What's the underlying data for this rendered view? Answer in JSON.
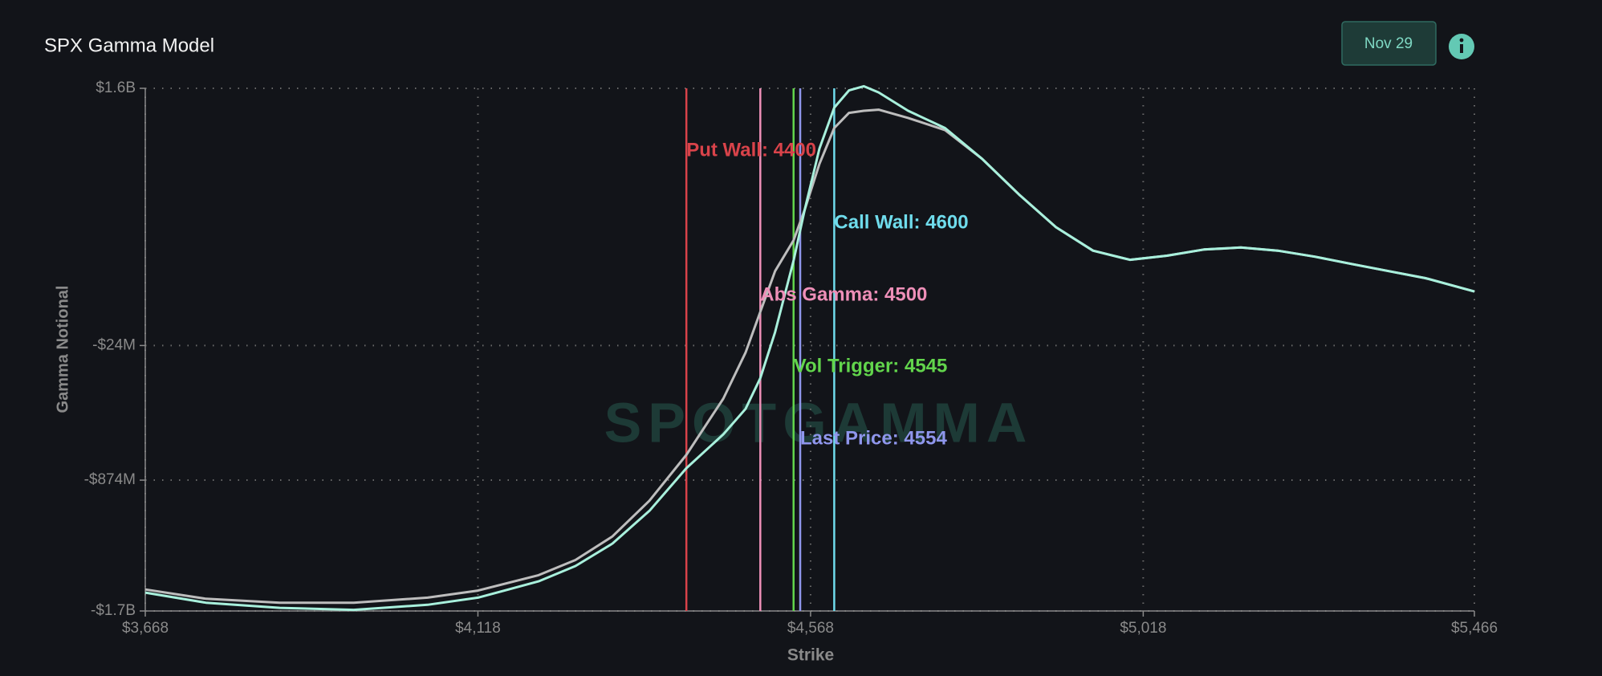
{
  "header": {
    "date_button": "Nov 29"
  },
  "chart_data": {
    "type": "line",
    "title": "SPX Gamma Model",
    "watermark": "SPOTGAMMA",
    "x_label": "Strike",
    "y_label": "Gamma Notional",
    "xlim": [
      3668,
      5466
    ],
    "xticks": [
      {
        "value": 3668,
        "label": "$3,668"
      },
      {
        "value": 4118,
        "label": "$4,118"
      },
      {
        "value": 4568,
        "label": "$4,568"
      },
      {
        "value": 5018,
        "label": "$5,018"
      },
      {
        "value": 5466,
        "label": "$5,466"
      }
    ],
    "ylim": [
      -1700000000,
      1600000000
    ],
    "yticks": [
      {
        "value": -1700000000,
        "label": "-$1.7B"
      },
      {
        "value": -874000000,
        "label": "-$874M"
      },
      {
        "value": -24000000,
        "label": "-$24M"
      },
      {
        "value": 1600000000,
        "label": "$1.6B"
      }
    ],
    "grid": true,
    "x": [
      3668,
      3750,
      3850,
      3950,
      4050,
      4118,
      4200,
      4250,
      4300,
      4350,
      4400,
      4450,
      4480,
      4500,
      4520,
      4545,
      4560,
      4580,
      4600,
      4620,
      4640,
      4660,
      4700,
      4750,
      4800,
      4850,
      4900,
      4950,
      5000,
      5050,
      5100,
      5150,
      5200,
      5250,
      5300,
      5350,
      5400,
      5466
    ],
    "series": [
      {
        "color": "#bdbdbd",
        "values": [
          -1564000000,
          -1623000000,
          -1648000000,
          -1648000000,
          -1616000000,
          -1571000000,
          -1474000000,
          -1378000000,
          -1229000000,
          -1004000000,
          -714000000,
          -359000000,
          -69000000,
          189000000,
          446000000,
          640000000,
          833000000,
          1123000000,
          1349000000,
          1445000000,
          1458000000,
          1465000000,
          1413000000,
          1336000000,
          1155000000,
          930000000,
          723000000,
          575000000,
          517000000,
          543000000,
          582000000,
          595000000,
          575000000,
          537000000,
          491000000,
          446000000,
          401000000,
          317000000
        ]
      },
      {
        "color": "#a8f0dc",
        "values": [
          -1584000000,
          -1648000000,
          -1680000000,
          -1693000000,
          -1661000000,
          -1616000000,
          -1513000000,
          -1416000000,
          -1274000000,
          -1068000000,
          -798000000,
          -585000000,
          -424000000,
          -230000000,
          60000000,
          511000000,
          833000000,
          1220000000,
          1478000000,
          1587000000,
          1613000000,
          1574000000,
          1458000000,
          1349000000,
          1155000000,
          930000000,
          723000000,
          575000000,
          517000000,
          543000000,
          582000000,
          595000000,
          575000000,
          537000000,
          491000000,
          446000000,
          401000000,
          317000000
        ]
      }
    ],
    "reference_lines": [
      {
        "value": 4400,
        "label": "Put Wall: 4400",
        "color": "#d9434a"
      },
      {
        "value": 4600,
        "label": "Call Wall: 4600",
        "color": "#6fdcec"
      },
      {
        "value": 4500,
        "label": "Abs Gamma: 4500",
        "color": "#ee8fb8"
      },
      {
        "value": 4545,
        "label": "Vol Trigger: 4545",
        "color": "#62d54c"
      },
      {
        "value": 4554,
        "label": "Last Price: 4554",
        "color": "#8f96ec"
      }
    ]
  }
}
